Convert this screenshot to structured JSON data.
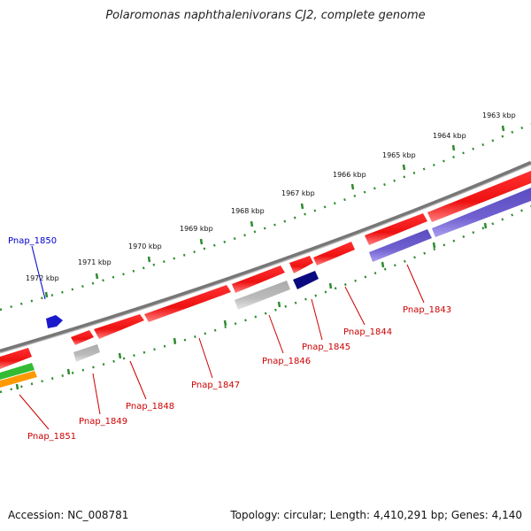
{
  "title": "Polaromonas naphthalenivorans CJ2, complete genome",
  "footer": {
    "accession": "Accession: NC_008781",
    "summary": "Topology: circular; Length: 4,410,291 bp; Genes: 4,140"
  },
  "colors": {
    "ruler": "#2e8b2e",
    "backbone": "#777777",
    "gene_red": "#ee1111",
    "gene_blue": "#1a1acc",
    "gene_navy": "#0a0a80",
    "gene_grey": "#bbbbbb",
    "gene_purple": "#7060d0",
    "gene_green": "#33bb33",
    "gene_orange": "#ff9900",
    "label_red": "#cc0000",
    "label_blue": "#0000cc"
  },
  "ruler_labels": [
    "1972 kbp",
    "1971 kbp",
    "1970 kbp",
    "1969 kbp",
    "1968 kbp",
    "1967 kbp",
    "1966 kbp",
    "1965 kbp",
    "1964 kbp",
    "1963 kbp"
  ],
  "gene_labels": {
    "pnap_1850": "Pnap_1850",
    "pnap_1851": "Pnap_1851",
    "pnap_1849": "Pnap_1849",
    "pnap_1848": "Pnap_1848",
    "pnap_1847": "Pnap_1847",
    "pnap_1846": "Pnap_1846",
    "pnap_1845": "Pnap_1845",
    "pnap_1844": "Pnap_1844",
    "pnap_1843": "Pnap_1843"
  }
}
